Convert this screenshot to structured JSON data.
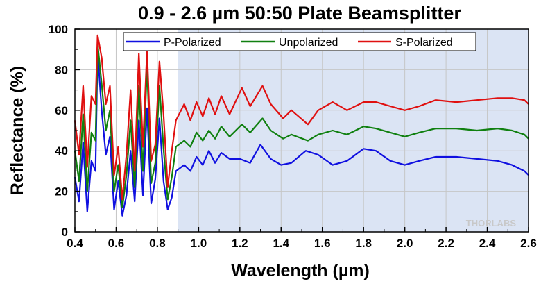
{
  "chart_data": {
    "type": "line",
    "title": "0.9 - 2.6 µm 50:50 Plate Beamsplitter",
    "xlabel": "Wavelength (µm)",
    "ylabel": "Reflectance (%)",
    "xlim": [
      0.4,
      2.6
    ],
    "ylim": [
      0,
      100
    ],
    "x_ticks": [
      "0.4",
      "0.6",
      "0.8",
      "1.0",
      "1.2",
      "1.4",
      "1.6",
      "1.8",
      "2.0",
      "2.2",
      "2.4",
      "2.6"
    ],
    "y_ticks": [
      "0",
      "20",
      "40",
      "60",
      "80",
      "100"
    ],
    "grid": true,
    "legend_position": "top",
    "shaded_region": [
      0.9,
      2.6
    ],
    "watermark": "THORLABS",
    "colors": {
      "shade": "#dbe4f4",
      "grid": "#c6c6c6"
    },
    "series": [
      {
        "name": "P-Polarized",
        "color": "#1010e0",
        "points": [
          [
            0.4,
            27
          ],
          [
            0.42,
            15
          ],
          [
            0.44,
            44
          ],
          [
            0.46,
            10
          ],
          [
            0.48,
            35
          ],
          [
            0.5,
            30
          ],
          [
            0.51,
            89
          ],
          [
            0.53,
            60
          ],
          [
            0.55,
            38
          ],
          [
            0.57,
            47
          ],
          [
            0.59,
            11
          ],
          [
            0.61,
            25
          ],
          [
            0.63,
            8
          ],
          [
            0.65,
            18
          ],
          [
            0.67,
            40
          ],
          [
            0.69,
            15
          ],
          [
            0.71,
            55
          ],
          [
            0.73,
            18
          ],
          [
            0.75,
            61
          ],
          [
            0.77,
            14
          ],
          [
            0.79,
            26
          ],
          [
            0.81,
            56
          ],
          [
            0.83,
            25
          ],
          [
            0.85,
            11
          ],
          [
            0.87,
            17
          ],
          [
            0.89,
            30
          ],
          [
            0.93,
            33
          ],
          [
            0.96,
            30
          ],
          [
            0.99,
            37
          ],
          [
            1.02,
            33
          ],
          [
            1.05,
            40
          ],
          [
            1.08,
            34
          ],
          [
            1.11,
            39
          ],
          [
            1.15,
            36
          ],
          [
            1.2,
            36
          ],
          [
            1.25,
            34
          ],
          [
            1.3,
            43
          ],
          [
            1.35,
            36
          ],
          [
            1.4,
            33
          ],
          [
            1.45,
            34
          ],
          [
            1.52,
            40
          ],
          [
            1.58,
            38
          ],
          [
            1.65,
            33
          ],
          [
            1.72,
            35
          ],
          [
            1.8,
            41
          ],
          [
            1.86,
            40
          ],
          [
            1.93,
            35
          ],
          [
            2.0,
            33
          ],
          [
            2.07,
            35
          ],
          [
            2.15,
            37
          ],
          [
            2.25,
            37
          ],
          [
            2.35,
            36
          ],
          [
            2.45,
            35
          ],
          [
            2.52,
            33
          ],
          [
            2.58,
            30
          ],
          [
            2.6,
            28
          ]
        ]
      },
      {
        "name": "Unpolarized",
        "color": "#108010",
        "points": [
          [
            0.4,
            40
          ],
          [
            0.42,
            25
          ],
          [
            0.44,
            58
          ],
          [
            0.46,
            20
          ],
          [
            0.48,
            49
          ],
          [
            0.5,
            45
          ],
          [
            0.51,
            93
          ],
          [
            0.53,
            73
          ],
          [
            0.55,
            50
          ],
          [
            0.57,
            60
          ],
          [
            0.59,
            20
          ],
          [
            0.61,
            33
          ],
          [
            0.63,
            12
          ],
          [
            0.65,
            28
          ],
          [
            0.67,
            55
          ],
          [
            0.69,
            22
          ],
          [
            0.71,
            72
          ],
          [
            0.73,
            30
          ],
          [
            0.75,
            82
          ],
          [
            0.77,
            24
          ],
          [
            0.79,
            34
          ],
          [
            0.81,
            72
          ],
          [
            0.83,
            41
          ],
          [
            0.85,
            16
          ],
          [
            0.87,
            27
          ],
          [
            0.89,
            42
          ],
          [
            0.93,
            45
          ],
          [
            0.96,
            42
          ],
          [
            0.99,
            49
          ],
          [
            1.02,
            45
          ],
          [
            1.05,
            50
          ],
          [
            1.08,
            46
          ],
          [
            1.11,
            52
          ],
          [
            1.15,
            47
          ],
          [
            1.21,
            53
          ],
          [
            1.25,
            49
          ],
          [
            1.31,
            56
          ],
          [
            1.35,
            50
          ],
          [
            1.41,
            46
          ],
          [
            1.45,
            48
          ],
          [
            1.53,
            45
          ],
          [
            1.58,
            48
          ],
          [
            1.65,
            50
          ],
          [
            1.72,
            48
          ],
          [
            1.8,
            52
          ],
          [
            1.86,
            51
          ],
          [
            1.93,
            49
          ],
          [
            2.0,
            47
          ],
          [
            2.07,
            49
          ],
          [
            2.15,
            51
          ],
          [
            2.25,
            51
          ],
          [
            2.35,
            50
          ],
          [
            2.45,
            51
          ],
          [
            2.52,
            50
          ],
          [
            2.58,
            48
          ],
          [
            2.6,
            46
          ]
        ]
      },
      {
        "name": "S-Polarized",
        "color": "#e01010",
        "points": [
          [
            0.4,
            55
          ],
          [
            0.42,
            38
          ],
          [
            0.44,
            72
          ],
          [
            0.46,
            32
          ],
          [
            0.48,
            67
          ],
          [
            0.5,
            63
          ],
          [
            0.51,
            97
          ],
          [
            0.53,
            86
          ],
          [
            0.55,
            63
          ],
          [
            0.57,
            72
          ],
          [
            0.59,
            28
          ],
          [
            0.61,
            42
          ],
          [
            0.63,
            16
          ],
          [
            0.65,
            38
          ],
          [
            0.67,
            70
          ],
          [
            0.69,
            30
          ],
          [
            0.71,
            88
          ],
          [
            0.73,
            42
          ],
          [
            0.75,
            90
          ],
          [
            0.77,
            35
          ],
          [
            0.79,
            43
          ],
          [
            0.81,
            84
          ],
          [
            0.83,
            58
          ],
          [
            0.85,
            22
          ],
          [
            0.87,
            40
          ],
          [
            0.89,
            55
          ],
          [
            0.93,
            63
          ],
          [
            0.96,
            55
          ],
          [
            0.99,
            64
          ],
          [
            1.02,
            57
          ],
          [
            1.05,
            66
          ],
          [
            1.08,
            58
          ],
          [
            1.11,
            67
          ],
          [
            1.15,
            58
          ],
          [
            1.21,
            71
          ],
          [
            1.25,
            62
          ],
          [
            1.31,
            72
          ],
          [
            1.35,
            63
          ],
          [
            1.41,
            56
          ],
          [
            1.45,
            60
          ],
          [
            1.53,
            53
          ],
          [
            1.58,
            60
          ],
          [
            1.65,
            64
          ],
          [
            1.72,
            60
          ],
          [
            1.8,
            64
          ],
          [
            1.86,
            64
          ],
          [
            1.93,
            62
          ],
          [
            2.0,
            60
          ],
          [
            2.07,
            62
          ],
          [
            2.15,
            65
          ],
          [
            2.25,
            64
          ],
          [
            2.35,
            65
          ],
          [
            2.45,
            66
          ],
          [
            2.52,
            66
          ],
          [
            2.58,
            65
          ],
          [
            2.6,
            63
          ]
        ]
      }
    ]
  }
}
